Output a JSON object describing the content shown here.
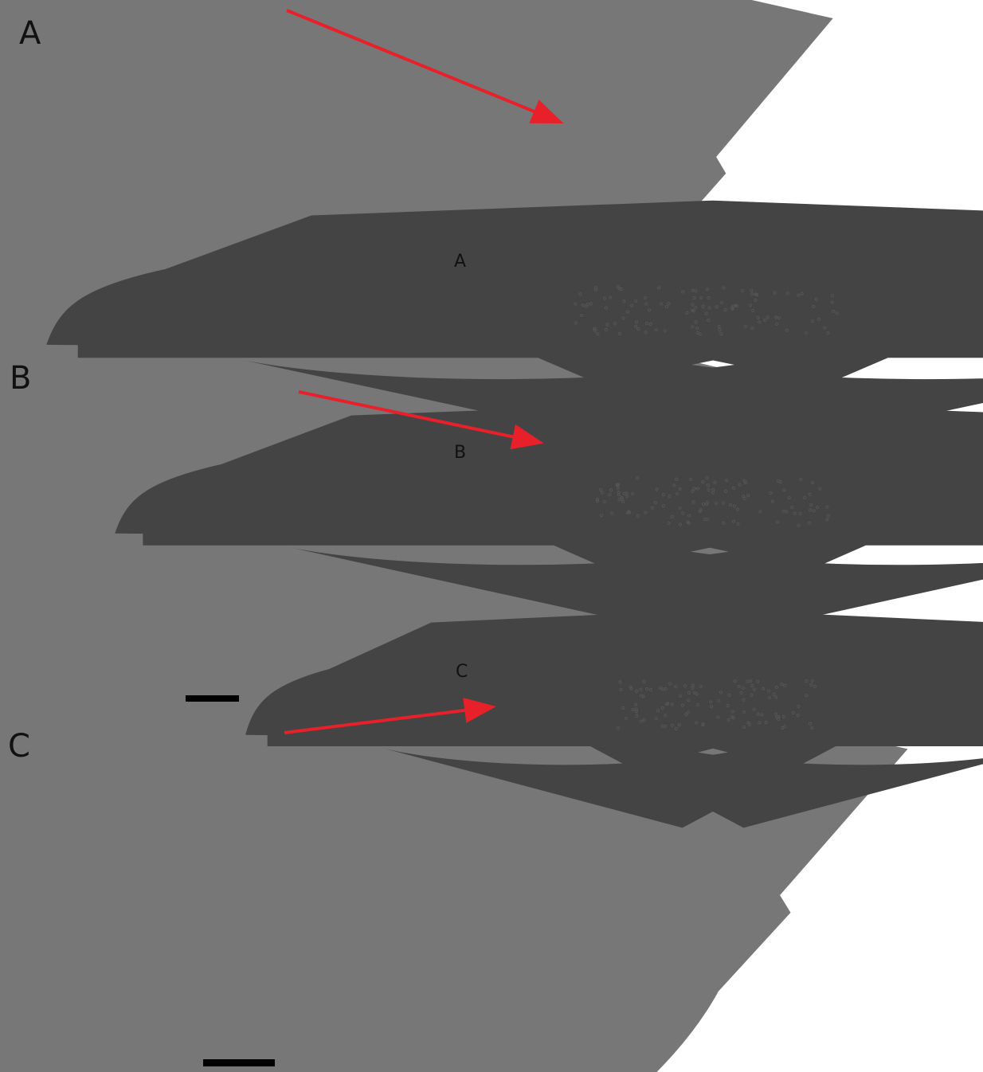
{
  "panels": [
    {
      "label": "A",
      "detail_label": "A"
    },
    {
      "label": "B",
      "detail_label": "B"
    },
    {
      "label": "C",
      "detail_label": "C"
    }
  ]
}
